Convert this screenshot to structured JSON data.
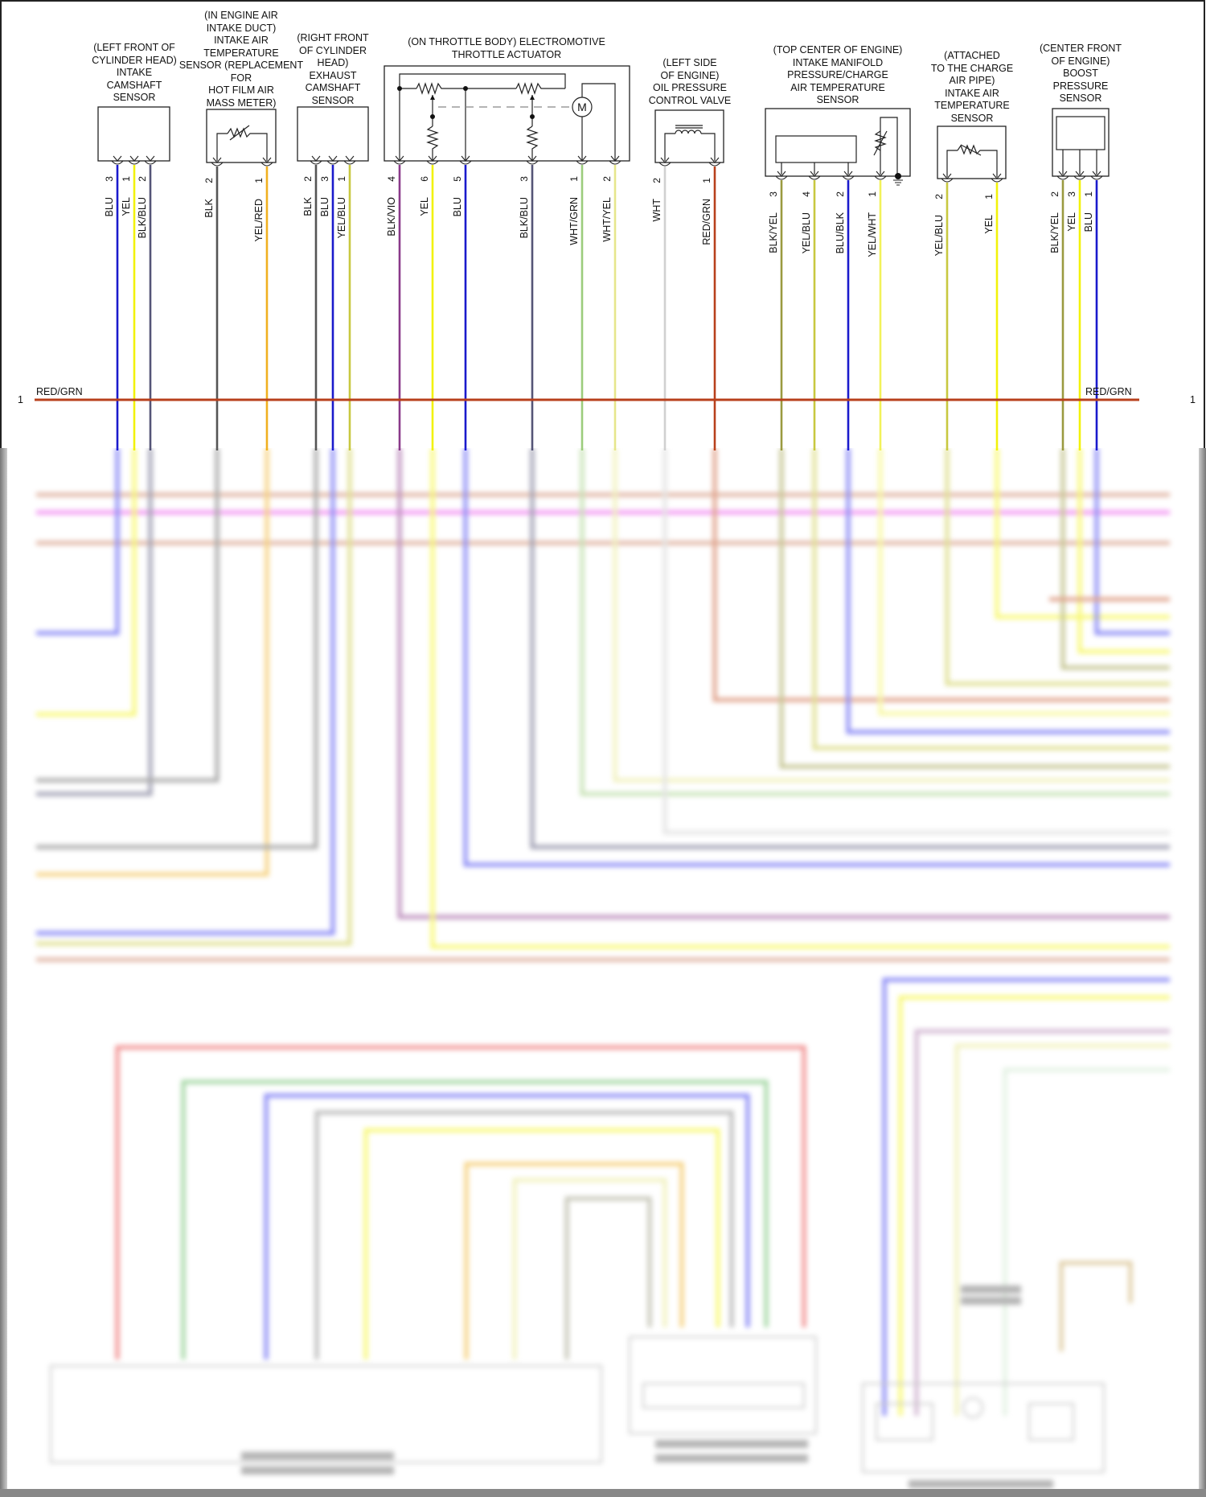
{
  "diagram": {
    "type": "engine-wiring-schematic",
    "bus": {
      "label_left": "RED/GRN",
      "label_right": "RED/GRN",
      "pin_left": "1",
      "pin_right": "1",
      "color": "#b8401c"
    },
    "components": [
      {
        "id": "intake-cam",
        "title": "(LEFT FRONT OF\nCYLINDER HEAD)\nINTAKE\nCAMSHAFT\nSENSOR",
        "pins": [
          {
            "num": "3",
            "wire": "BLU",
            "color": "#1a1acc"
          },
          {
            "num": "1",
            "wire": "YEL",
            "color": "#f2f20a"
          },
          {
            "num": "2",
            "wire": "BLK/BLU",
            "color": "#555577"
          }
        ]
      },
      {
        "id": "iat-duct",
        "title": "(IN ENGINE AIR\nINTAKE DUCT)\nINTAKE AIR\nTEMPERATURE\nSENSOR (REPLACEMENT\nFOR\nHOT FILM AIR\nMASS METER)",
        "pins": [
          {
            "num": "2",
            "wire": "BLK",
            "color": "#555555"
          },
          {
            "num": "1",
            "wire": "YEL/RED",
            "color": "#f0b020"
          }
        ]
      },
      {
        "id": "exhaust-cam",
        "title": "(RIGHT FRONT\nOF CYLINDER\nHEAD)\nEXHAUST\nCAMSHAFT\nSENSOR",
        "pins": [
          {
            "num": "2",
            "wire": "BLK",
            "color": "#555555"
          },
          {
            "num": "3",
            "wire": "BLU",
            "color": "#1a1acc"
          },
          {
            "num": "1",
            "wire": "YEL/BLU",
            "color": "#c8c840"
          }
        ]
      },
      {
        "id": "throttle",
        "title": "(ON THROTTLE BODY) ELECTROMOTIVE\nTHROTTLE ACTUATOR",
        "motor_label": "M",
        "pins": [
          {
            "num": "4",
            "wire": "BLK/VIO",
            "color": "#8a3a8a"
          },
          {
            "num": "6",
            "wire": "YEL",
            "color": "#f2f20a"
          },
          {
            "num": "5",
            "wire": "BLU",
            "color": "#1a1acc"
          },
          {
            "num": "3",
            "wire": "BLK/BLU",
            "color": "#555577"
          },
          {
            "num": "1",
            "wire": "WHT/GRN",
            "color": "#9ccc7c"
          },
          {
            "num": "2",
            "wire": "WHT/YEL",
            "color": "#e6e68c"
          }
        ]
      },
      {
        "id": "oil-valve",
        "title": "(LEFT SIDE\nOF ENGINE)\nOIL PRESSURE\nCONTROL VALVE",
        "pins": [
          {
            "num": "2",
            "wire": "WHT",
            "color": "#d0d0d0"
          },
          {
            "num": "1",
            "wire": "RED/GRN",
            "color": "#b8401c"
          }
        ]
      },
      {
        "id": "map-sensor",
        "title": "(TOP CENTER OF ENGINE)\nINTAKE MANIFOLD\nPRESSURE/CHARGE\nAIR TEMPERATURE\nSENSOR",
        "pins": [
          {
            "num": "3",
            "wire": "BLK/YEL",
            "color": "#9a9a40"
          },
          {
            "num": "4",
            "wire": "YEL/BLU",
            "color": "#c8c840"
          },
          {
            "num": "2",
            "wire": "BLU/BLK",
            "color": "#1a1acc"
          },
          {
            "num": "1",
            "wire": "YEL/WHT",
            "color": "#f2f25a"
          }
        ]
      },
      {
        "id": "charge-iat",
        "title": "(ATTACHED\nTO THE CHARGE\nAIR PIPE)\nINTAKE AIR\nTEMPERATURE\nSENSOR",
        "pins": [
          {
            "num": "2",
            "wire": "YEL/BLU",
            "color": "#c8c840"
          },
          {
            "num": "1",
            "wire": "YEL",
            "color": "#f2f20a"
          }
        ]
      },
      {
        "id": "boost",
        "title": "(CENTER FRONT\nOF ENGINE)\nBOOST\nPRESSURE\nSENSOR",
        "pins": [
          {
            "num": "2",
            "wire": "BLK/YEL",
            "color": "#9a9a40"
          },
          {
            "num": "3",
            "wire": "YEL",
            "color": "#f2f20a"
          },
          {
            "num": "1",
            "wire": "BLU",
            "color": "#1a1acc"
          }
        ]
      }
    ]
  }
}
